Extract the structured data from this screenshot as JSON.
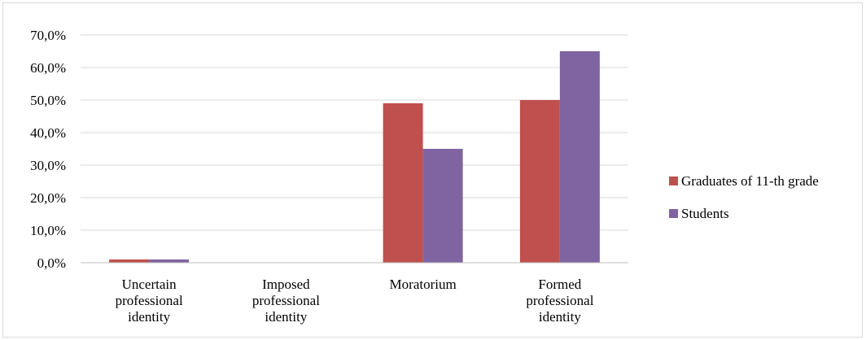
{
  "chart_data": {
    "type": "bar",
    "title": "",
    "xlabel": "",
    "ylabel": "",
    "categories": [
      [
        "Uncertain",
        "professional",
        "identity"
      ],
      [
        "Imposed",
        "professional",
        "identity"
      ],
      [
        "Moratorium"
      ],
      [
        "Formed",
        "professional",
        "identity"
      ]
    ],
    "series": [
      {
        "name": "Graduates of 11-th grade",
        "color": "#c0504d",
        "values": [
          1.0,
          0.0,
          49.0,
          50.0
        ]
      },
      {
        "name": "Students",
        "color": "#8064a2",
        "values": [
          1.0,
          0.0,
          35.0,
          65.0
        ]
      }
    ],
    "ylim": [
      0,
      70
    ],
    "yticks": [
      "0,0%",
      "10,0%",
      "20,0%",
      "30,0%",
      "40,0%",
      "50,0%",
      "60,0%",
      "70,0%"
    ],
    "grid": true,
    "legend_position": "right"
  }
}
